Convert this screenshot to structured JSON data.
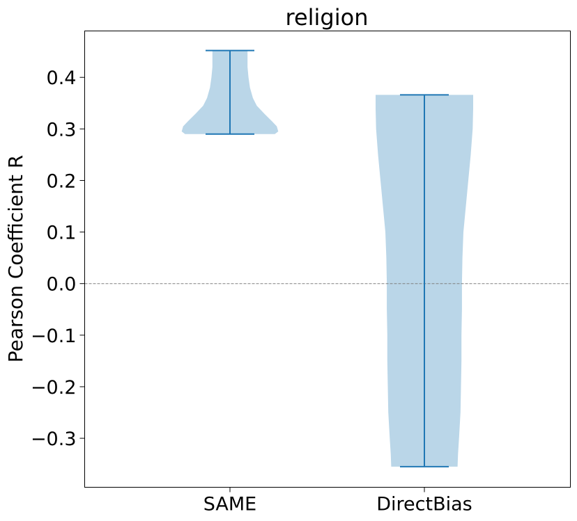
{
  "chart_data": {
    "type": "violin",
    "title": "religion",
    "xlabel": "",
    "ylabel": "Pearson Coefficient R",
    "categories": [
      "SAME",
      "DirectBias"
    ],
    "ylim": [
      -0.395,
      0.49
    ],
    "yticks": [
      -0.3,
      -0.2,
      -0.1,
      0.0,
      0.1,
      0.2,
      0.3,
      0.4
    ],
    "ytick_labels": [
      "−0.3",
      "−0.2",
      "−0.1",
      "0.0",
      "0.1",
      "0.2",
      "0.3",
      "0.4"
    ],
    "reference_line": {
      "y": 0.0,
      "style": "dashed",
      "color": "#808080"
    },
    "grid": false,
    "colors": {
      "body": "#bad6e8",
      "stats": "#1f77b4"
    },
    "violins": [
      {
        "name": "SAME",
        "min": 0.29,
        "max": 0.452,
        "density": [
          [
            0.29,
            0.92
          ],
          [
            0.295,
            0.99
          ],
          [
            0.305,
            0.96
          ],
          [
            0.315,
            0.86
          ],
          [
            0.33,
            0.7
          ],
          [
            0.345,
            0.55
          ],
          [
            0.36,
            0.47
          ],
          [
            0.38,
            0.41
          ],
          [
            0.4,
            0.38
          ],
          [
            0.42,
            0.36
          ],
          [
            0.44,
            0.36
          ],
          [
            0.452,
            0.36
          ]
        ]
      },
      {
        "name": "DirectBias",
        "min": -0.355,
        "max": 0.366,
        "density": [
          [
            -0.355,
            0.68
          ],
          [
            -0.33,
            0.69
          ],
          [
            -0.3,
            0.71
          ],
          [
            -0.25,
            0.74
          ],
          [
            -0.2,
            0.75
          ],
          [
            -0.15,
            0.76
          ],
          [
            -0.1,
            0.76
          ],
          [
            -0.05,
            0.77
          ],
          [
            0.0,
            0.77
          ],
          [
            0.05,
            0.78
          ],
          [
            0.1,
            0.8
          ],
          [
            0.15,
            0.85
          ],
          [
            0.2,
            0.9
          ],
          [
            0.25,
            0.95
          ],
          [
            0.3,
            0.99
          ],
          [
            0.34,
            1.0
          ],
          [
            0.366,
            1.0
          ]
        ]
      }
    ]
  }
}
